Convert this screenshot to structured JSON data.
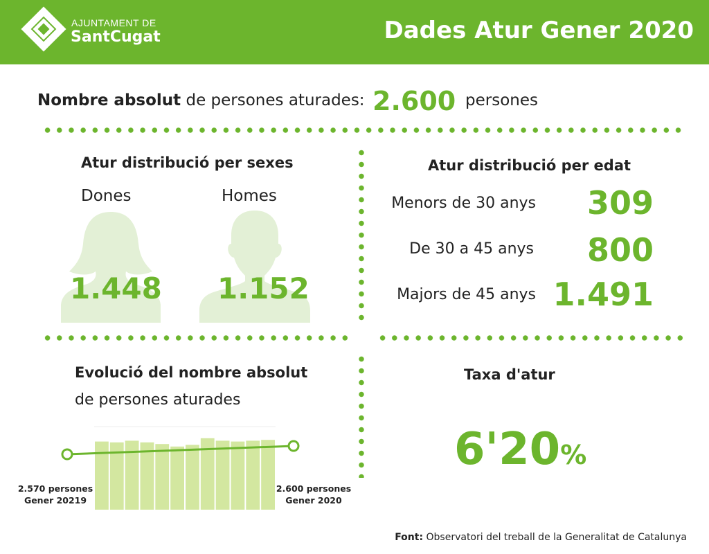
{
  "header": {
    "logo_top": "AJUNTAMENT DE",
    "logo_bottom": "SantCugat",
    "title": "Dades Atur Gener 2020"
  },
  "total": {
    "label_bold": "Nombre absolut",
    "label_rest": " de persones aturades:",
    "value": "2.600",
    "unit": "persones"
  },
  "sex": {
    "title": "Atur distribució per sexes",
    "women_label": "Dones",
    "men_label": "Homes",
    "women_value": "1.448",
    "men_value": "1.152",
    "silhouette_color": "#e3f0d6"
  },
  "age": {
    "title": "Atur distribució per edat",
    "rows": [
      {
        "label": "Menors de 30 anys",
        "value": "309"
      },
      {
        "label": "De 30 a 45 anys",
        "value": "800"
      },
      {
        "label": "Majors de 45 anys",
        "value": "1.491"
      }
    ]
  },
  "evolution": {
    "title_bold": "Evolució del nombre absolut",
    "title_rest": "de persones aturades",
    "start_label_1": "2.570 persones",
    "start_label_2": "Gener 20219",
    "end_label_1": "2.600 persones",
    "end_label_2": "Gener 2020"
  },
  "chart_data": {
    "type": "bar",
    "bar_values": [
      0.82,
      0.81,
      0.83,
      0.81,
      0.79,
      0.76,
      0.78,
      0.86,
      0.83,
      0.82,
      0.83,
      0.84
    ],
    "line": {
      "start": 2570,
      "end": 2600
    },
    "bar_color": "#d3e7a0",
    "line_color": "#6cb52d"
  },
  "rate": {
    "title": "Taxa d'atur",
    "value": "6'20",
    "pct": "%"
  },
  "source": {
    "label": "Font:",
    "text": " Observatori del treball de la Generalitat de Catalunya"
  },
  "colors": {
    "accent": "#6cb52d",
    "text": "#222222"
  }
}
